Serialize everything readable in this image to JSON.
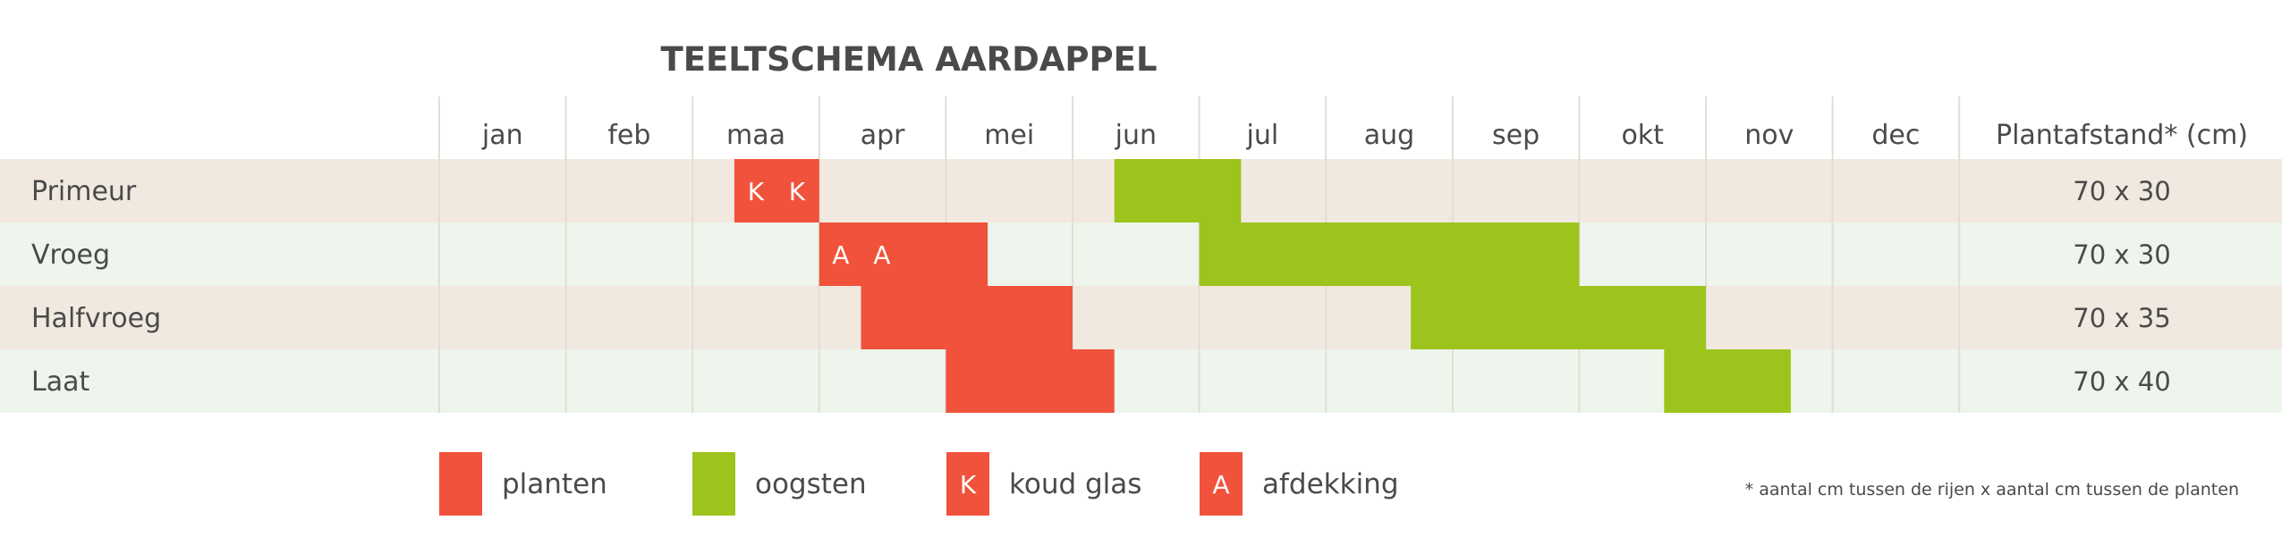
{
  "colors": {
    "planten": "#f0523c",
    "oogsten": "#9dc41c",
    "row_odd": "#f1e9e0",
    "row_even": "#edf5ec",
    "grid": "#e3ddd6",
    "text": "#4a4a4a"
  },
  "chart_data": {
    "type": "gantt",
    "title": "TEELTSCHEMA AARDAPPEL",
    "months": [
      "jan",
      "feb",
      "maa",
      "apr",
      "mei",
      "jun",
      "jul",
      "aug",
      "sep",
      "okt",
      "nov",
      "dec"
    ],
    "spacing_header": "Plantafstand* (cm)",
    "rows": [
      {
        "label": "Primeur",
        "spacing": "70 x 30",
        "bars": [
          {
            "kind": "planten",
            "start": 2.33,
            "end": 3.0,
            "marks": [
              "K",
              "K"
            ]
          },
          {
            "kind": "oogsten",
            "start": 5.33,
            "end": 6.33,
            "marks": []
          }
        ]
      },
      {
        "label": "Vroeg",
        "spacing": "70 x 30",
        "bars": [
          {
            "kind": "planten",
            "start": 3.0,
            "end": 4.33,
            "marks": [
              "A",
              "A"
            ]
          },
          {
            "kind": "oogsten",
            "start": 6.0,
            "end": 9.0,
            "marks": []
          }
        ]
      },
      {
        "label": "Halfvroeg",
        "spacing": "70 x 35",
        "bars": [
          {
            "kind": "planten",
            "start": 3.33,
            "end": 5.0,
            "marks": []
          },
          {
            "kind": "oogsten",
            "start": 7.67,
            "end": 10.0,
            "marks": []
          }
        ]
      },
      {
        "label": "Laat",
        "spacing": "70 x 40",
        "bars": [
          {
            "kind": "planten",
            "start": 4.0,
            "end": 5.33,
            "marks": []
          },
          {
            "kind": "oogsten",
            "start": 9.67,
            "end": 10.67,
            "marks": []
          }
        ]
      }
    ]
  },
  "legend": [
    {
      "kind": "planten",
      "letter": "",
      "label": "planten"
    },
    {
      "kind": "oogsten",
      "letter": "",
      "label": "oogsten"
    },
    {
      "kind": "planten",
      "letter": "K",
      "label": "koud glas"
    },
    {
      "kind": "planten",
      "letter": "A",
      "label": "afdekking"
    }
  ],
  "footnote": "* aantal cm tussen de rijen x aantal cm tussen de planten"
}
